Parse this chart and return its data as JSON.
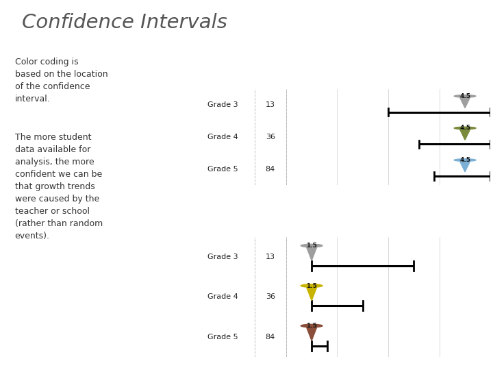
{
  "title": "Confidence Intervals",
  "left_text_block1": "Color coding is\nbased on the location\nof the confidence\ninterval.",
  "left_text_block2": "The more student\ndata available for\nanalysis, the more\nconfident we can be\nthat growth trends\nwere caused by the\nteacher or school\n(rather than random\nevents).",
  "header_bg": "#5a5a5a",
  "reading_label_bg": "#2a6ebb",
  "math_label_bg": "#c87f30",
  "row_bg_odd": "#eaeaea",
  "row_bg_even": "#f7f7f7",
  "reading": {
    "grades": [
      "Grade 3",
      "Grade 4",
      "Grade 5"
    ],
    "n": [
      13,
      36,
      84
    ],
    "estimate": [
      4.5,
      4.5,
      4.5
    ],
    "ci_low": [
      3.0,
      3.6,
      3.9
    ],
    "ci_high": [
      5.0,
      5.0,
      5.0
    ],
    "colors": [
      "#9e9e9e",
      "#7a8c3c",
      "#7db0d5"
    ]
  },
  "math": {
    "grades": [
      "Grade 3",
      "Grade 4",
      "Grade 5"
    ],
    "n": [
      13,
      36,
      84
    ],
    "estimate": [
      1.5,
      1.5,
      1.5
    ],
    "ci_low": [
      1.5,
      1.5,
      1.5
    ],
    "ci_high": [
      3.5,
      2.5,
      1.8
    ],
    "colors": [
      "#9e9e9e",
      "#c8b400",
      "#8b4e3b"
    ]
  },
  "x_min": 1,
  "x_max": 5,
  "x_ticks": [
    1,
    2,
    3,
    4,
    5
  ]
}
